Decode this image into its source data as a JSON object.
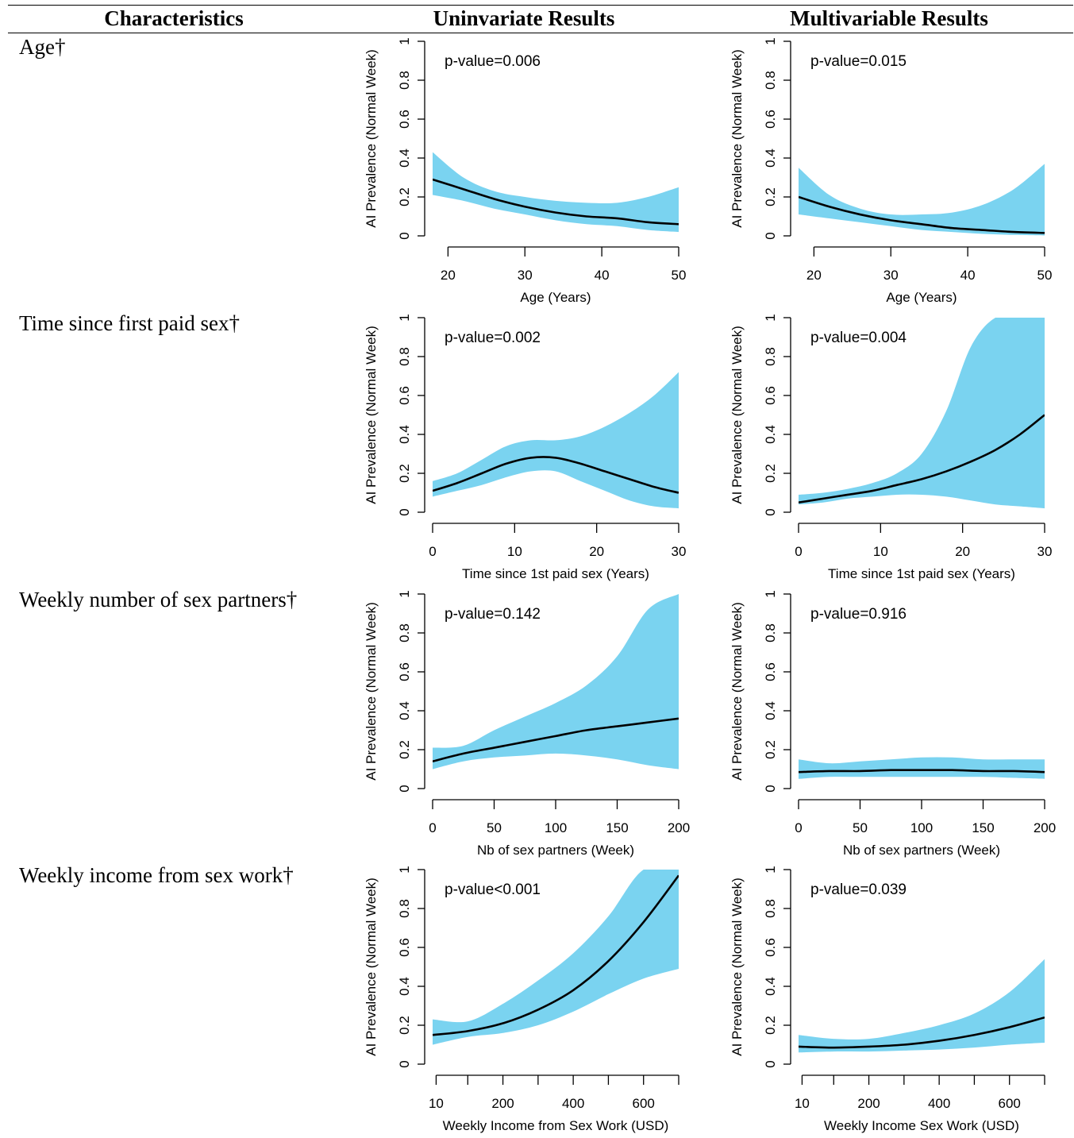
{
  "header": {
    "col1": "Characteristics",
    "col2": "Uninvariate Results",
    "col3": "Multivariable Results"
  },
  "rows": [
    {
      "label": "Age†"
    },
    {
      "label": "Time since first paid sex†"
    },
    {
      "label": "Weekly number of sex partners†"
    },
    {
      "label": "Weekly income from sex work†"
    }
  ],
  "colors": {
    "band": "#7ad3f0",
    "line": "#000000"
  },
  "chart_data": [
    {
      "id": "age-uni",
      "type": "line",
      "annotation": "p-value=0.006",
      "xlabel": "Age (Years)",
      "ylabel": "AI Prevalence (Normal Week)",
      "xlim": [
        18,
        50
      ],
      "ylim": [
        0,
        1
      ],
      "xticks": [
        20,
        30,
        40,
        50
      ],
      "xtick_labels": [
        "20",
        "30",
        "40",
        "50"
      ],
      "yticks": [
        0,
        0.2,
        0.4,
        0.6,
        0.8,
        1
      ],
      "ytick_labels": [
        "0",
        "0.2",
        "0.4",
        "0.6",
        "0.8",
        "1"
      ],
      "x": [
        18,
        22,
        26,
        30,
        34,
        38,
        42,
        46,
        50
      ],
      "y": [
        0.29,
        0.24,
        0.19,
        0.15,
        0.12,
        0.1,
        0.09,
        0.07,
        0.06
      ],
      "lower": [
        0.21,
        0.18,
        0.14,
        0.11,
        0.08,
        0.06,
        0.05,
        0.03,
        0.02
      ],
      "upper": [
        0.43,
        0.3,
        0.23,
        0.2,
        0.18,
        0.17,
        0.17,
        0.2,
        0.25
      ]
    },
    {
      "id": "age-multi",
      "type": "line",
      "annotation": "p-value=0.015",
      "xlabel": "Age (Years)",
      "ylabel": "AI Prevalence (Normal Week)",
      "xlim": [
        18,
        50
      ],
      "ylim": [
        0,
        1
      ],
      "xticks": [
        20,
        30,
        40,
        50
      ],
      "xtick_labels": [
        "20",
        "30",
        "40",
        "50"
      ],
      "yticks": [
        0,
        0.2,
        0.4,
        0.6,
        0.8,
        1
      ],
      "ytick_labels": [
        "0",
        "0.2",
        "0.4",
        "0.6",
        "0.8",
        "1"
      ],
      "x": [
        18,
        22,
        26,
        30,
        34,
        38,
        42,
        46,
        50
      ],
      "y": [
        0.2,
        0.15,
        0.11,
        0.08,
        0.06,
        0.04,
        0.03,
        0.02,
        0.015
      ],
      "lower": [
        0.11,
        0.09,
        0.07,
        0.05,
        0.03,
        0.02,
        0.01,
        0.005,
        0.002
      ],
      "upper": [
        0.35,
        0.21,
        0.14,
        0.11,
        0.11,
        0.12,
        0.16,
        0.24,
        0.37
      ]
    },
    {
      "id": "paidsex-uni",
      "type": "line",
      "annotation": "p-value=0.002",
      "xlabel": "Time since 1st paid sex (Years)",
      "ylabel": "AI Prevalence (Normal Week)",
      "xlim": [
        0,
        30
      ],
      "ylim": [
        0,
        1
      ],
      "xticks": [
        0,
        10,
        20,
        30
      ],
      "xtick_labels": [
        "0",
        "10",
        "20",
        "30"
      ],
      "yticks": [
        0,
        0.2,
        0.4,
        0.6,
        0.8,
        1
      ],
      "ytick_labels": [
        "0",
        "0.2",
        "0.4",
        "0.6",
        "0.8",
        "1"
      ],
      "x": [
        0,
        3,
        6,
        9,
        12,
        15,
        18,
        21,
        24,
        27,
        30
      ],
      "y": [
        0.11,
        0.15,
        0.2,
        0.25,
        0.28,
        0.28,
        0.25,
        0.21,
        0.17,
        0.13,
        0.1
      ],
      "lower": [
        0.08,
        0.11,
        0.14,
        0.18,
        0.21,
        0.21,
        0.16,
        0.11,
        0.06,
        0.03,
        0.02
      ],
      "upper": [
        0.16,
        0.2,
        0.27,
        0.34,
        0.37,
        0.37,
        0.39,
        0.44,
        0.51,
        0.6,
        0.72
      ]
    },
    {
      "id": "paidsex-multi",
      "type": "line",
      "annotation": "p-value=0.004",
      "xlabel": "Time since 1st paid sex (Years)",
      "ylabel": "AI Prevalence (Normal Week)",
      "xlim": [
        0,
        30
      ],
      "ylim": [
        0,
        1
      ],
      "xticks": [
        0,
        10,
        20,
        30
      ],
      "xtick_labels": [
        "0",
        "10",
        "20",
        "30"
      ],
      "yticks": [
        0,
        0.2,
        0.4,
        0.6,
        0.8,
        1
      ],
      "ytick_labels": [
        "0",
        "0.2",
        "0.4",
        "0.6",
        "0.8",
        "1"
      ],
      "x": [
        0,
        3,
        6,
        9,
        12,
        15,
        18,
        21,
        24,
        27,
        30
      ],
      "y": [
        0.05,
        0.07,
        0.09,
        0.11,
        0.14,
        0.17,
        0.21,
        0.26,
        0.32,
        0.4,
        0.5
      ],
      "lower": [
        0.04,
        0.05,
        0.07,
        0.08,
        0.09,
        0.09,
        0.08,
        0.06,
        0.04,
        0.03,
        0.02
      ],
      "upper": [
        0.09,
        0.1,
        0.12,
        0.15,
        0.2,
        0.3,
        0.52,
        0.85,
        1.0,
        1.0,
        1.0
      ]
    },
    {
      "id": "partners-uni",
      "type": "line",
      "annotation": "p-value=0.142",
      "xlabel": "Nb of sex partners (Week)",
      "ylabel": "AI Prevalence (Normal Week)",
      "xlim": [
        0,
        200
      ],
      "ylim": [
        0,
        1
      ],
      "xticks": [
        0,
        50,
        100,
        150,
        200
      ],
      "xtick_labels": [
        "0",
        "50",
        "100",
        "150",
        "200"
      ],
      "yticks": [
        0,
        0.2,
        0.4,
        0.6,
        0.8,
        1
      ],
      "ytick_labels": [
        "0",
        "0.2",
        "0.4",
        "0.6",
        "0.8",
        "1"
      ],
      "x": [
        0,
        25,
        50,
        75,
        100,
        125,
        150,
        175,
        200
      ],
      "y": [
        0.14,
        0.18,
        0.21,
        0.24,
        0.27,
        0.3,
        0.32,
        0.34,
        0.36
      ],
      "lower": [
        0.1,
        0.14,
        0.16,
        0.17,
        0.18,
        0.17,
        0.15,
        0.12,
        0.1
      ],
      "upper": [
        0.21,
        0.22,
        0.3,
        0.37,
        0.44,
        0.53,
        0.68,
        0.92,
        1.0
      ]
    },
    {
      "id": "partners-multi",
      "type": "line",
      "annotation": "p-value=0.916",
      "xlabel": "Nb of sex partners (Week)",
      "ylabel": "AI Prevalence (Normal Week)",
      "xlim": [
        0,
        200
      ],
      "ylim": [
        0,
        1
      ],
      "xticks": [
        0,
        50,
        100,
        150,
        200
      ],
      "xtick_labels": [
        "0",
        "50",
        "100",
        "150",
        "200"
      ],
      "yticks": [
        0,
        0.2,
        0.4,
        0.6,
        0.8,
        1
      ],
      "ytick_labels": [
        "0",
        "0.2",
        "0.4",
        "0.6",
        "0.8",
        "1"
      ],
      "x": [
        0,
        25,
        50,
        75,
        100,
        125,
        150,
        175,
        200
      ],
      "y": [
        0.085,
        0.09,
        0.09,
        0.095,
        0.095,
        0.095,
        0.09,
        0.09,
        0.085
      ],
      "lower": [
        0.05,
        0.06,
        0.06,
        0.06,
        0.06,
        0.06,
        0.06,
        0.055,
        0.05
      ],
      "upper": [
        0.15,
        0.13,
        0.14,
        0.15,
        0.16,
        0.16,
        0.15,
        0.15,
        0.15
      ]
    },
    {
      "id": "income-uni",
      "type": "line",
      "annotation": "p-value<0.001",
      "xlabel": "Weekly Income from Sex Work (USD)",
      "ylabel": "AI Prevalence (Normal Week)",
      "xlim": [
        0,
        700
      ],
      "ylim": [
        0,
        1
      ],
      "xticks": [
        10,
        100,
        200,
        300,
        400,
        500,
        600,
        700
      ],
      "xtick_labels": [
        "10",
        "",
        "200",
        "",
        "400",
        "",
        "600",
        ""
      ],
      "yticks": [
        0,
        0.2,
        0.4,
        0.6,
        0.8,
        1
      ],
      "ytick_labels": [
        "0",
        "0.2",
        "0.4",
        "0.6",
        "0.8",
        "1"
      ],
      "x": [
        0,
        100,
        200,
        300,
        400,
        500,
        600,
        700
      ],
      "y": [
        0.15,
        0.17,
        0.21,
        0.28,
        0.38,
        0.53,
        0.73,
        0.97
      ],
      "lower": [
        0.1,
        0.14,
        0.16,
        0.2,
        0.27,
        0.36,
        0.44,
        0.49
      ],
      "upper": [
        0.23,
        0.22,
        0.31,
        0.43,
        0.57,
        0.76,
        1.0,
        1.0
      ]
    },
    {
      "id": "income-multi",
      "type": "line",
      "annotation": "p-value=0.039",
      "xlabel": "Weekly Income Sex Work (USD)",
      "ylabel": "AI Prevalence (Normal Week)",
      "xlim": [
        0,
        700
      ],
      "ylim": [
        0,
        1
      ],
      "xticks": [
        10,
        100,
        200,
        300,
        400,
        500,
        600,
        700
      ],
      "xtick_labels": [
        "10",
        "",
        "200",
        "",
        "400",
        "",
        "600",
        ""
      ],
      "yticks": [
        0,
        0.2,
        0.4,
        0.6,
        0.8,
        1
      ],
      "ytick_labels": [
        "0",
        "0.2",
        "0.4",
        "0.6",
        "0.8",
        "1"
      ],
      "x": [
        0,
        100,
        200,
        300,
        400,
        500,
        600,
        700
      ],
      "y": [
        0.09,
        0.085,
        0.09,
        0.1,
        0.12,
        0.15,
        0.19,
        0.24
      ],
      "lower": [
        0.06,
        0.065,
        0.065,
        0.07,
        0.075,
        0.085,
        0.1,
        0.11
      ],
      "upper": [
        0.15,
        0.13,
        0.13,
        0.16,
        0.2,
        0.26,
        0.37,
        0.54
      ]
    }
  ]
}
